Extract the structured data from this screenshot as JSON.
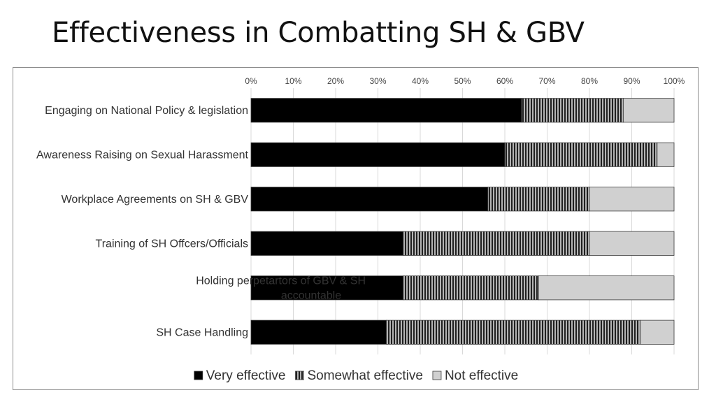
{
  "title": "Effectiveness in Combatting SH & GBV",
  "chart_data": {
    "type": "bar",
    "orientation": "horizontal",
    "stacked": "percent",
    "categories": [
      "Engaging on National Policy & legislation",
      "Awareness Raising on Sexual Harassment",
      "Workplace Agreements on SH & GBV",
      "Training of SH Offcers/Officials",
      "Holding perpetartors of GBV & SH accountable",
      "SH Case Handling"
    ],
    "series": [
      {
        "name": "Very effective",
        "values": [
          64,
          60,
          56,
          36,
          36,
          32
        ],
        "color": "#000000",
        "pattern": "solid"
      },
      {
        "name": "Somewhat effective",
        "values": [
          24,
          36,
          24,
          44,
          32,
          60
        ],
        "color": "#555555",
        "pattern": "vertical-stripes"
      },
      {
        "name": "Not effective",
        "values": [
          12,
          4,
          20,
          20,
          32,
          8
        ],
        "color": "#d0d0d0",
        "pattern": "solid"
      }
    ],
    "x_ticks": [
      "0%",
      "10%",
      "20%",
      "30%",
      "40%",
      "50%",
      "60%",
      "70%",
      "80%",
      "90%",
      "100%"
    ],
    "xlim": [
      0,
      100
    ],
    "x_axis_position": "top",
    "grid": true,
    "legend_position": "bottom"
  }
}
